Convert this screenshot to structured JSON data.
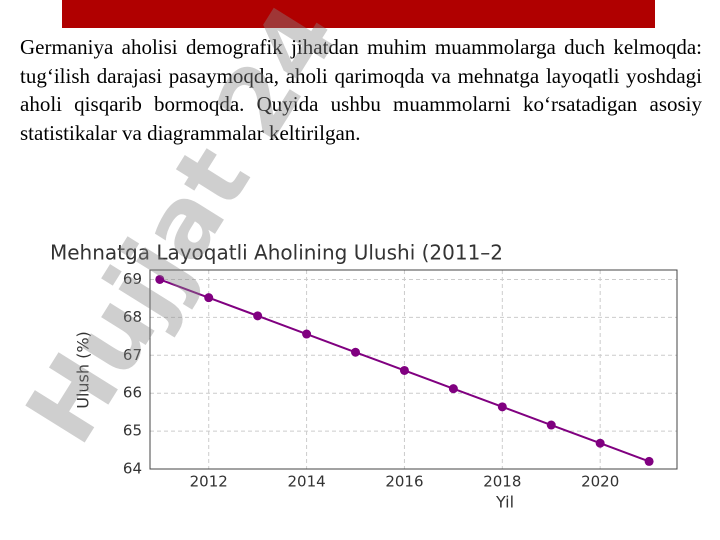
{
  "paragraph": "Germaniya aholisi demografik jihatdan muhim muammolarga duch kelmoqda: tug‘ilish darajasi pasaymoqda, aholi qarimoqda va mehnatga layoqatli yoshdagi aholi qisqarib bormoqda. Quyida ushbu muammolarni ko‘rsatadigan asosiy statistikalar va diagrammalar keltirilgan.",
  "watermark": "Hujjat 24",
  "chart_data": {
    "type": "line",
    "title": "Mehnatga Layoqatli Aholining Ulushi (2011–2",
    "x_label": "Yil",
    "y_label": "Ulush (%)",
    "x": [
      2011,
      2012,
      2013,
      2014,
      2015,
      2016,
      2017,
      2018,
      2019,
      2020,
      2021
    ],
    "series": [
      {
        "name": "Ulush",
        "color": "#800080",
        "values": [
          69.0,
          68.52,
          68.04,
          67.56,
          67.08,
          66.6,
          66.12,
          65.64,
          65.16,
          64.68,
          64.2
        ]
      }
    ],
    "xlim": [
      2010.8,
      2021.57
    ],
    "xticks": [
      2012,
      2014,
      2016,
      2018,
      2020
    ],
    "ylim": [
      64,
      69.25
    ],
    "yticks": [
      64,
      65,
      66,
      67,
      68,
      69
    ],
    "grid": true
  }
}
